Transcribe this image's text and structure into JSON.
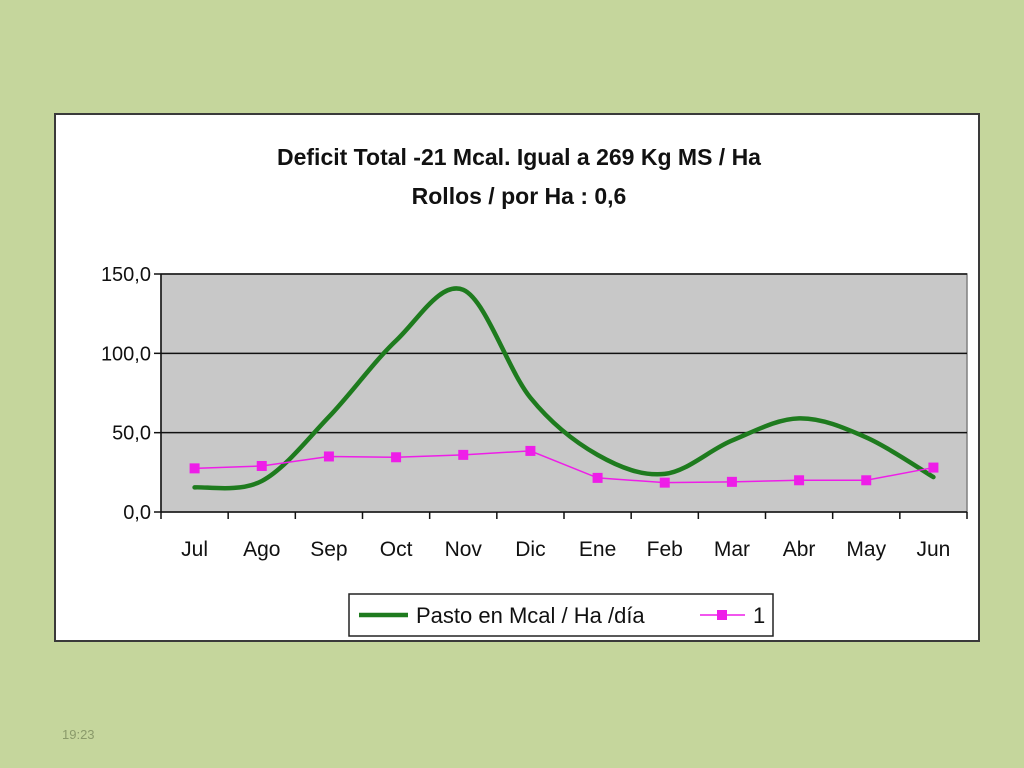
{
  "slide": {
    "footer_time": "19:23"
  },
  "chart_data": {
    "type": "line",
    "title_line1": "Deficit Total -21 Mcal. Igual a 269 Kg MS / Ha",
    "title_line2": "Rollos / por Ha : 0,6",
    "categories": [
      "Jul",
      "Ago",
      "Sep",
      "Oct",
      "Nov",
      "Dic",
      "Ene",
      "Feb",
      "Mar",
      "Abr",
      "May",
      "Jun"
    ],
    "yticks": [
      "0,0",
      "50,0",
      "100,0",
      "150,0"
    ],
    "ylim": [
      0,
      150
    ],
    "grid": true,
    "legend_position": "bottom",
    "series": [
      {
        "name": "Pasto en Mcal / Ha /día",
        "color": "#1e7b1e",
        "smooth": true,
        "markers": false,
        "values": [
          15.5,
          19.5,
          60,
          108,
          140,
          72,
          36,
          24,
          45,
          59,
          47,
          22
        ]
      },
      {
        "name": "1",
        "color": "#ee1ee8",
        "smooth": false,
        "markers": true,
        "values": [
          27.5,
          29,
          35,
          34.5,
          36,
          38.5,
          21.5,
          18.5,
          19,
          20,
          20,
          28
        ]
      }
    ]
  }
}
